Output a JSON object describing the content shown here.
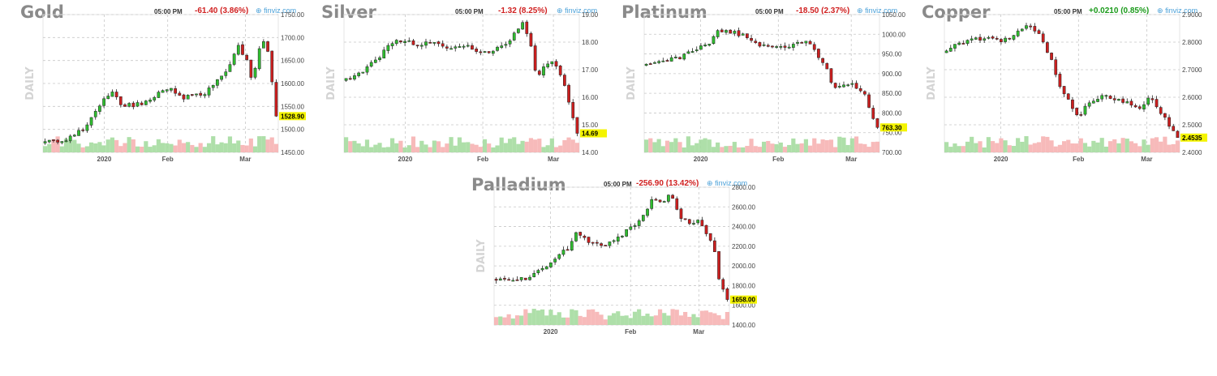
{
  "chart_data": [
    {
      "type": "candlestick",
      "title": "Gold",
      "time": "05:00 PM",
      "change": "-61.40 (3.86%)",
      "change_dir": "down",
      "source": "finviz.com",
      "side_label": "DAILY",
      "y_ticks": [
        "1750.00",
        "1700.00",
        "1650.00",
        "1600.00",
        "1550.00",
        "1500.00",
        "1450.00"
      ],
      "ylim": [
        1450,
        1750
      ],
      "last_label": "1528.90",
      "last_value": 1528.9,
      "x_labels": [
        {
          "label": "2020",
          "at": 0.26
        },
        {
          "label": "Feb",
          "at": 0.53
        },
        {
          "label": "Mar",
          "at": 0.86
        }
      ],
      "path": [
        [
          0,
          1470
        ],
        [
          0.06,
          1475
        ],
        [
          0.12,
          1480
        ],
        [
          0.18,
          1500
        ],
        [
          0.22,
          1530
        ],
        [
          0.26,
          1560
        ],
        [
          0.3,
          1580
        ],
        [
          0.34,
          1555
        ],
        [
          0.38,
          1552
        ],
        [
          0.45,
          1560
        ],
        [
          0.5,
          1580
        ],
        [
          0.55,
          1590
        ],
        [
          0.58,
          1570
        ],
        [
          0.62,
          1570
        ],
        [
          0.7,
          1580
        ],
        [
          0.76,
          1610
        ],
        [
          0.8,
          1640
        ],
        [
          0.84,
          1680
        ],
        [
          0.88,
          1645
        ],
        [
          0.9,
          1600
        ],
        [
          0.92,
          1670
        ],
        [
          0.95,
          1690
        ],
        [
          0.97,
          1660
        ],
        [
          1.0,
          1528.9
        ]
      ]
    },
    {
      "type": "candlestick",
      "title": "Silver",
      "time": "05:00 PM",
      "change": "-1.32 (8.25%)",
      "change_dir": "down",
      "source": "finviz.com",
      "side_label": "DAILY",
      "y_ticks": [
        "19.00",
        "18.00",
        "17.00",
        "16.00",
        "15.00",
        "14.00"
      ],
      "ylim": [
        14,
        19
      ],
      "last_label": "14.69",
      "last_value": 14.69,
      "x_labels": [
        {
          "label": "2020",
          "at": 0.26
        },
        {
          "label": "Feb",
          "at": 0.59
        },
        {
          "label": "Mar",
          "at": 0.89
        }
      ],
      "path": [
        [
          0,
          16.6
        ],
        [
          0.08,
          16.9
        ],
        [
          0.14,
          17.3
        ],
        [
          0.2,
          17.9
        ],
        [
          0.26,
          18.1
        ],
        [
          0.32,
          17.9
        ],
        [
          0.4,
          18.0
        ],
        [
          0.46,
          17.7
        ],
        [
          0.52,
          17.9
        ],
        [
          0.58,
          17.6
        ],
        [
          0.64,
          17.7
        ],
        [
          0.7,
          17.9
        ],
        [
          0.74,
          18.4
        ],
        [
          0.77,
          18.8
        ],
        [
          0.8,
          18.0
        ],
        [
          0.83,
          16.6
        ],
        [
          0.86,
          17.2
        ],
        [
          0.9,
          17.4
        ],
        [
          0.93,
          16.8
        ],
        [
          0.96,
          16.0
        ],
        [
          1.0,
          14.69
        ]
      ]
    },
    {
      "type": "candlestick",
      "title": "Platinum",
      "time": "05:00 PM",
      "change": "-18.50 (2.37%)",
      "change_dir": "down",
      "source": "finviz.com",
      "side_label": "DAILY",
      "y_ticks": [
        "1050.00",
        "1000.00",
        "950.00",
        "900.00",
        "850.00",
        "800.00",
        "750.00",
        "700.00"
      ],
      "ylim": [
        700,
        1050
      ],
      "last_label": "763.30",
      "last_value": 763.3,
      "x_labels": [
        {
          "label": "2020",
          "at": 0.24
        },
        {
          "label": "Feb",
          "at": 0.57
        },
        {
          "label": "Mar",
          "at": 0.88
        }
      ],
      "path": [
        [
          0,
          920
        ],
        [
          0.06,
          935
        ],
        [
          0.12,
          935
        ],
        [
          0.18,
          945
        ],
        [
          0.24,
          965
        ],
        [
          0.28,
          975
        ],
        [
          0.32,
          1010
        ],
        [
          0.38,
          1005
        ],
        [
          0.44,
          995
        ],
        [
          0.5,
          970
        ],
        [
          0.56,
          970
        ],
        [
          0.62,
          970
        ],
        [
          0.66,
          975
        ],
        [
          0.7,
          985
        ],
        [
          0.74,
          950
        ],
        [
          0.78,
          915
        ],
        [
          0.82,
          860
        ],
        [
          0.86,
          875
        ],
        [
          0.9,
          870
        ],
        [
          0.94,
          855
        ],
        [
          0.97,
          800
        ],
        [
          1.0,
          763.3
        ]
      ]
    },
    {
      "type": "candlestick",
      "title": "Copper",
      "time": "05:00 PM",
      "change": "+0.0210 (0.85%)",
      "change_dir": "up",
      "source": "finviz.com",
      "side_label": "DAILY",
      "y_ticks": [
        "2.9000",
        "2.8000",
        "2.7000",
        "2.6000",
        "2.5000",
        "2.4000"
      ],
      "ylim": [
        2.4,
        2.9
      ],
      "last_label": "2.4535",
      "last_value": 2.4535,
      "x_labels": [
        {
          "label": "2020",
          "at": 0.24
        },
        {
          "label": "Feb",
          "at": 0.57
        },
        {
          "label": "Mar",
          "at": 0.86
        }
      ],
      "path": [
        [
          0,
          2.76
        ],
        [
          0.05,
          2.79
        ],
        [
          0.1,
          2.8
        ],
        [
          0.15,
          2.81
        ],
        [
          0.2,
          2.82
        ],
        [
          0.25,
          2.8
        ],
        [
          0.3,
          2.82
        ],
        [
          0.35,
          2.86
        ],
        [
          0.38,
          2.85
        ],
        [
          0.42,
          2.82
        ],
        [
          0.46,
          2.74
        ],
        [
          0.5,
          2.64
        ],
        [
          0.54,
          2.58
        ],
        [
          0.58,
          2.53
        ],
        [
          0.62,
          2.58
        ],
        [
          0.66,
          2.6
        ],
        [
          0.72,
          2.6
        ],
        [
          0.78,
          2.58
        ],
        [
          0.84,
          2.56
        ],
        [
          0.88,
          2.6
        ],
        [
          0.92,
          2.56
        ],
        [
          0.96,
          2.5
        ],
        [
          1.0,
          2.4535
        ]
      ]
    },
    {
      "type": "candlestick",
      "title": "Palladium",
      "time": "05:00 PM",
      "change": "-256.90 (13.42%)",
      "change_dir": "down",
      "source": "finviz.com",
      "side_label": "DAILY",
      "y_ticks": [
        "2800.00",
        "2600.00",
        "2400.00",
        "2200.00",
        "2000.00",
        "1800.00",
        "1600.00",
        "1400.00"
      ],
      "ylim": [
        1400,
        2800
      ],
      "last_label": "1658.00",
      "last_value": 1658.0,
      "x_labels": [
        {
          "label": "2020",
          "at": 0.24
        },
        {
          "label": "Feb",
          "at": 0.58
        },
        {
          "label": "Mar",
          "at": 0.87
        }
      ],
      "path": [
        [
          0,
          1860
        ],
        [
          0.06,
          1880
        ],
        [
          0.1,
          1850
        ],
        [
          0.14,
          1870
        ],
        [
          0.2,
          1950
        ],
        [
          0.26,
          2060
        ],
        [
          0.32,
          2180
        ],
        [
          0.36,
          2350
        ],
        [
          0.4,
          2250
        ],
        [
          0.46,
          2200
        ],
        [
          0.52,
          2280
        ],
        [
          0.56,
          2330
        ],
        [
          0.6,
          2400
        ],
        [
          0.64,
          2500
        ],
        [
          0.68,
          2680
        ],
        [
          0.72,
          2640
        ],
        [
          0.76,
          2720
        ],
        [
          0.8,
          2470
        ],
        [
          0.84,
          2440
        ],
        [
          0.88,
          2450
        ],
        [
          0.92,
          2300
        ],
        [
          0.95,
          2100
        ],
        [
          0.97,
          1800
        ],
        [
          1.0,
          1658
        ]
      ]
    }
  ]
}
